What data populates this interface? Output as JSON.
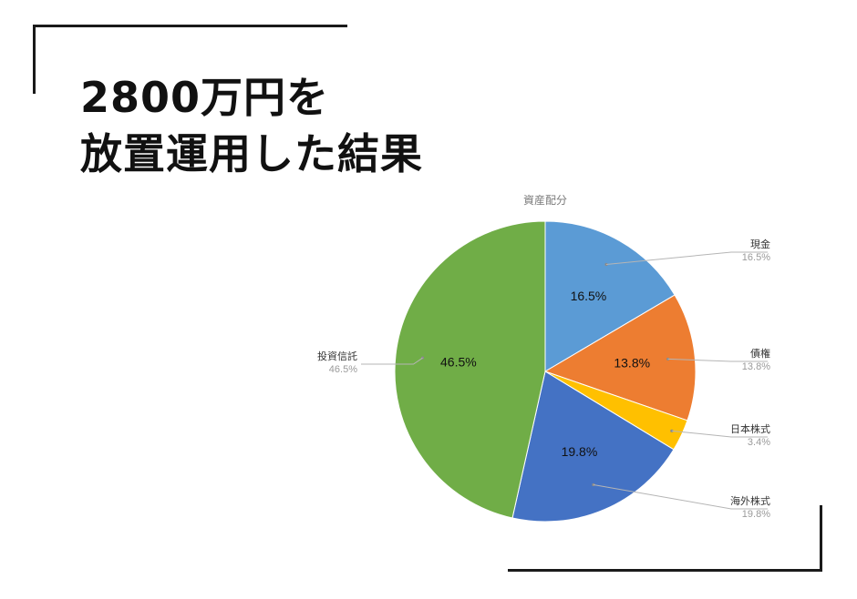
{
  "headline": {
    "line1": "2800万円を",
    "line2": "放置運用した結果"
  },
  "chart_data": {
    "type": "pie",
    "title": "資産配分",
    "categories": [
      "現金",
      "債権",
      "日本株式",
      "海外株式",
      "投資信託"
    ],
    "values": [
      16.5,
      13.8,
      3.4,
      19.8,
      46.5
    ],
    "labels": [
      "16.5%",
      "13.8%",
      "3.4%",
      "19.8%",
      "46.5%"
    ],
    "colors": [
      "#5b9bd5",
      "#ed7d31",
      "#ffc000",
      "#4472c4",
      "#70ad47"
    ],
    "inner_labels": [
      true,
      true,
      false,
      true,
      true
    ],
    "legend": "callout labels outside slices"
  }
}
